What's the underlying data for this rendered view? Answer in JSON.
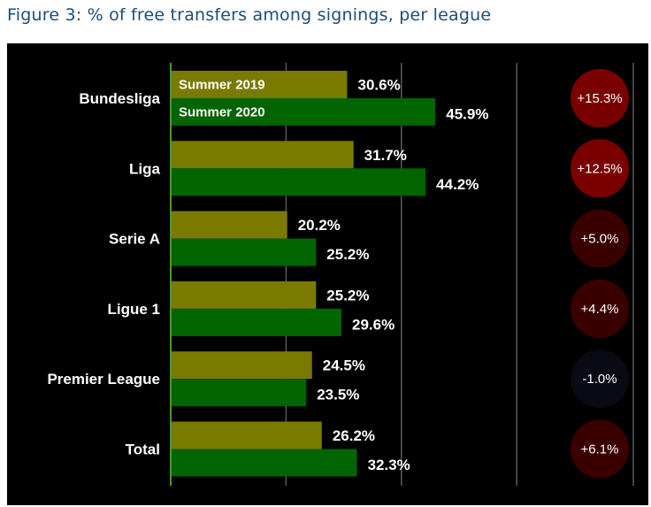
{
  "figure_title": "Figure 3: % of free transfers among signings, per league",
  "colors": {
    "summer_2019": "#7a7a00",
    "summer_2020": "#006400",
    "positive_strong": "#7a0000",
    "positive_weak": "#3a0000",
    "negative": "#0a0a14",
    "gridline": "#5a5a5a",
    "axis": "#4a9a2a"
  },
  "chart_data": {
    "type": "bar",
    "orientation": "horizontal",
    "categories": [
      "Bundesliga",
      "Liga",
      "Serie A",
      "Ligue 1",
      "Premier League",
      "Total"
    ],
    "series": [
      {
        "name": "Summer 2019",
        "values": [
          30.6,
          31.7,
          20.2,
          25.2,
          24.5,
          26.2
        ],
        "labels": [
          "30.6%",
          "31.7%",
          "20.2%",
          "25.2%",
          "24.5%",
          "26.2%"
        ]
      },
      {
        "name": "Summer 2020",
        "values": [
          45.9,
          44.2,
          25.2,
          29.6,
          23.5,
          32.3
        ],
        "labels": [
          "45.9%",
          "44.2%",
          "25.2%",
          "29.6%",
          "23.5%",
          "32.3%"
        ]
      }
    ],
    "differences": [
      15.3,
      12.5,
      5.0,
      4.4,
      -1.0,
      6.1
    ],
    "difference_labels": [
      "+15.3%",
      "+12.5%",
      "+5.0%",
      "+4.4%",
      "-1.0%",
      "+6.1%"
    ],
    "xlim": [
      0,
      60
    ],
    "gridlines_at": [
      20,
      40,
      60
    ],
    "grid": true,
    "legend": "inside-first-bars",
    "title": "",
    "xlabel": "",
    "ylabel": ""
  }
}
